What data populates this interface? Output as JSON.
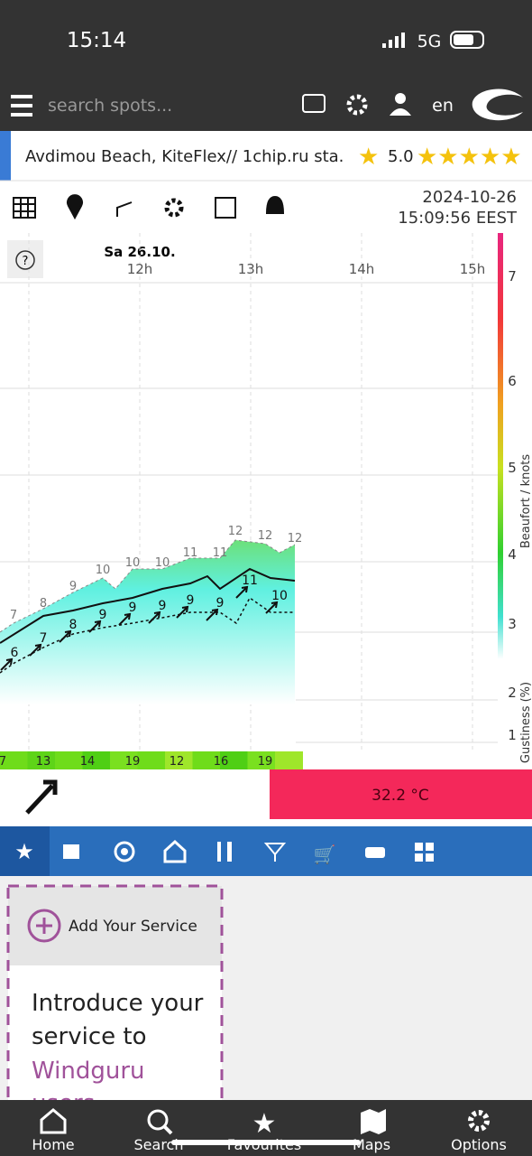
{
  "status_bar": {
    "time": "15:14",
    "network": "5G"
  },
  "header": {
    "search_placeholder": "search spots...",
    "language": "en"
  },
  "spot": {
    "name": "Avdimou Beach, KiteFlex// 1chip.ru sta.",
    "rating": "5.0"
  },
  "toolbar": {
    "date": "2024-10-26",
    "time": "15:09:56 EEST"
  },
  "forecast": {
    "day": "Sa 26.10.",
    "hours": [
      "12h",
      "13h",
      "14h",
      "15h"
    ],
    "scale_labels": [
      "7",
      "6",
      "5",
      "4",
      "3",
      "2",
      "1"
    ],
    "scale_title": "Beaufort / knots",
    "gust_scale_title": "Gustiness (%)",
    "gust_labels": [
      "7",
      "8",
      "9",
      "10",
      "10",
      "10",
      "11",
      "11",
      "12",
      "12",
      "12"
    ],
    "mean_labels": [
      "6",
      "7",
      "8",
      "9",
      "9",
      "9",
      "9",
      "9",
      "11",
      "10"
    ],
    "gustiness": [
      "7",
      "13",
      "14",
      "19",
      "12",
      "16",
      "19"
    ],
    "temperature": "32.2 °C"
  },
  "service_card": {
    "title": "Add Your Service",
    "text": "Introduce your service to",
    "link": "Windguru",
    "link2": "users"
  },
  "bottom_nav": [
    "Home",
    "Search",
    "Favourites",
    "Maps",
    "Options"
  ]
}
